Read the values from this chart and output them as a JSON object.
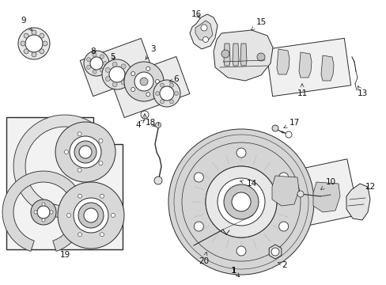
{
  "bg_color": "#ffffff",
  "fig_width": 4.89,
  "fig_height": 3.6,
  "dpi": 100,
  "line_color": "#2a2a2a",
  "fill_light": "#f0f0f0",
  "fill_mid": "#d8d8d8",
  "label_fontsize": 7.5
}
